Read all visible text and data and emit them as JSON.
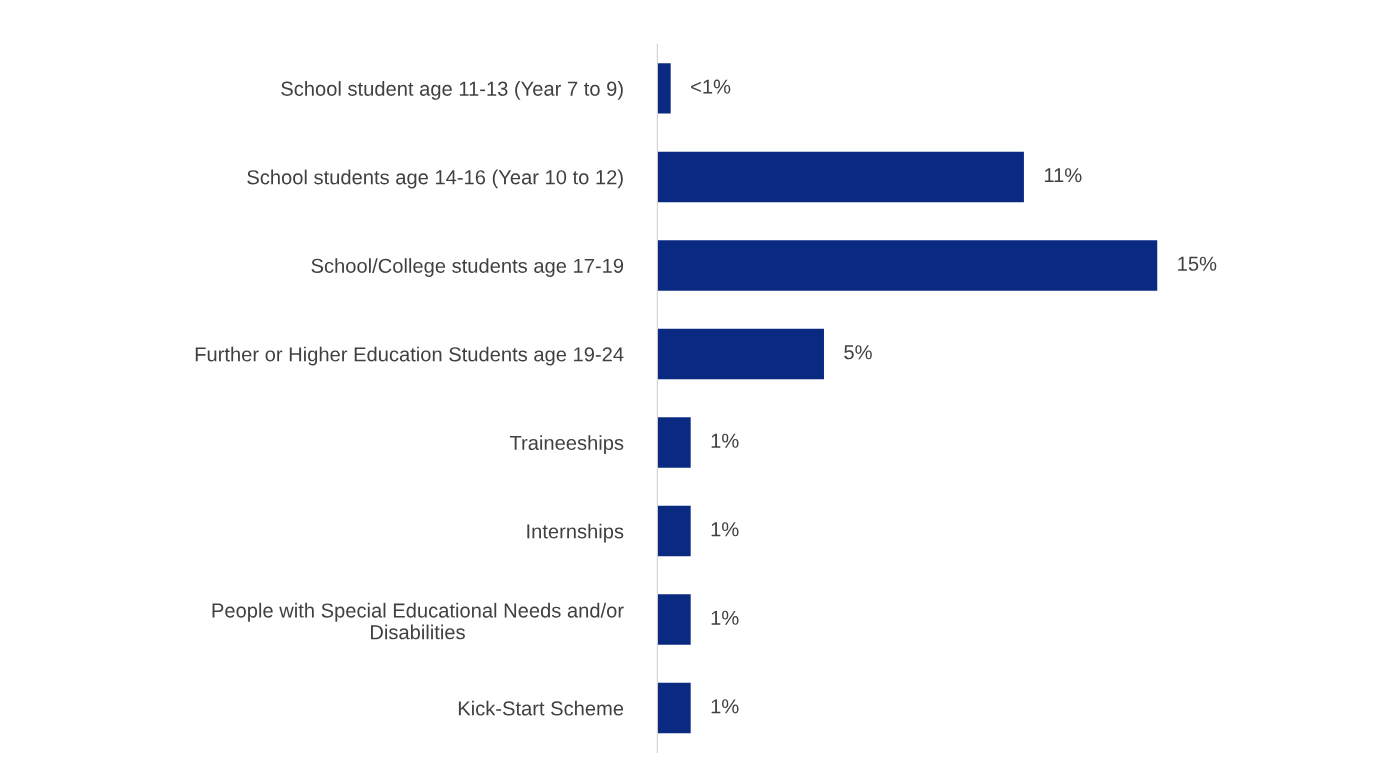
{
  "chart_data": {
    "type": "bar",
    "orientation": "horizontal",
    "categories": [
      "School student age 11-13 (Year 7 to 9)",
      "School students age 14-16 (Year 10 to 12)",
      "School/College students age 17-19",
      "Further or Higher Education Students age 19-24",
      "Traineeships",
      "Internships",
      "People with Special Educational Needs and/or\nDisabilities",
      "Kick-Start Scheme"
    ],
    "values": [
      0.4,
      11,
      15,
      5,
      1,
      1,
      1,
      1
    ],
    "value_labels": [
      "<1%",
      "11%",
      "15%",
      "5%",
      "1%",
      "1%",
      "1%",
      "1%"
    ],
    "color": "#0a2a82",
    "grid": false,
    "tick_labels": "y"
  }
}
